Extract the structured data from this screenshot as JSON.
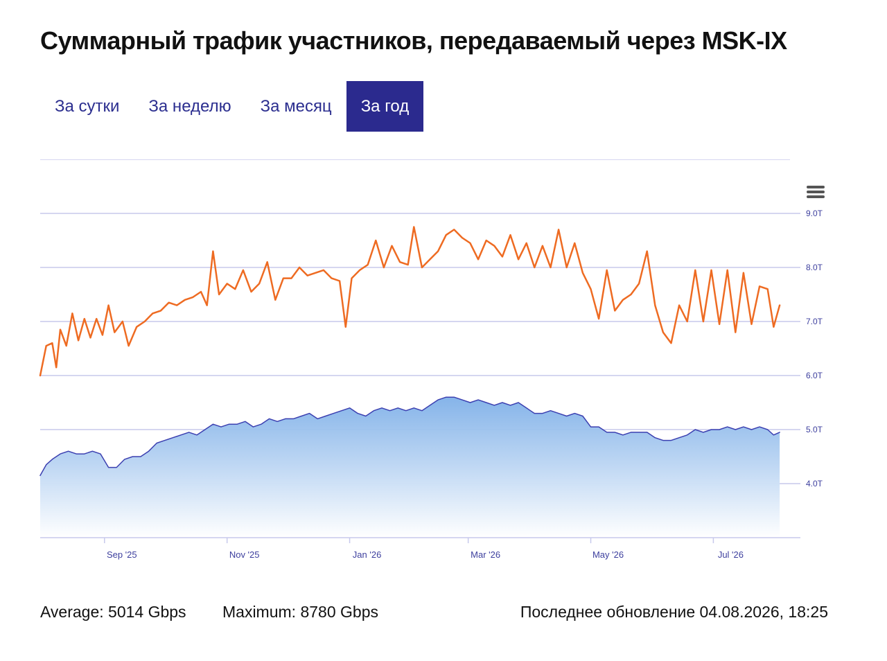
{
  "header": {
    "title": "Суммарный трафик участников, передаваемый через MSK-IX"
  },
  "tabs": [
    {
      "label": "За сутки",
      "active": false
    },
    {
      "label": "За неделю",
      "active": false
    },
    {
      "label": "За месяц",
      "active": false
    },
    {
      "label": "За год",
      "active": true
    }
  ],
  "menu": {
    "icon": "hamburger-menu-icon"
  },
  "colors": {
    "tab_active_bg": "#2b2a8e",
    "tab_text": "#2b2e8f",
    "max_series": "#ee6b22",
    "avg_series": "#3b3fb0",
    "area_fill_top": "#7fb0e8",
    "area_fill_bottom": "#ffffff",
    "grid": "#c7c9ec",
    "tick_text": "#3d3f9e"
  },
  "chart_data": {
    "type": "line",
    "x_start": "2025-07-31",
    "x_end": "2026-08-04",
    "x_tick_labels": [
      "Sep '25",
      "Nov '25",
      "Jan '26",
      "Mar '26",
      "May '26",
      "Jul '26"
    ],
    "x_tick_dates": [
      "2025-09-01",
      "2025-11-01",
      "2026-01-01",
      "2026-03-01",
      "2026-05-01",
      "2026-07-01"
    ],
    "y_tick_labels": [
      "4.0T",
      "5.0T",
      "6.0T",
      "7.0T",
      "8.0T",
      "9.0T"
    ],
    "y_tick_values": [
      4,
      5,
      6,
      7,
      8,
      9
    ],
    "ylim": [
      3,
      10
    ],
    "y_axis_side": "right",
    "grid": true,
    "series": [
      {
        "key": "max",
        "color": "#ee6b22",
        "fill": false,
        "points": [
          [
            "2025-07-31",
            6.0
          ],
          [
            "2025-08-03",
            6.55
          ],
          [
            "2025-08-06",
            6.6
          ],
          [
            "2025-08-08",
            6.15
          ],
          [
            "2025-08-10",
            6.85
          ],
          [
            "2025-08-13",
            6.55
          ],
          [
            "2025-08-16",
            7.15
          ],
          [
            "2025-08-19",
            6.65
          ],
          [
            "2025-08-22",
            7.05
          ],
          [
            "2025-08-25",
            6.7
          ],
          [
            "2025-08-28",
            7.05
          ],
          [
            "2025-08-31",
            6.75
          ],
          [
            "2025-09-03",
            7.3
          ],
          [
            "2025-09-06",
            6.8
          ],
          [
            "2025-09-10",
            7.0
          ],
          [
            "2025-09-13",
            6.55
          ],
          [
            "2025-09-17",
            6.9
          ],
          [
            "2025-09-21",
            7.0
          ],
          [
            "2025-09-25",
            7.15
          ],
          [
            "2025-09-29",
            7.2
          ],
          [
            "2025-10-03",
            7.35
          ],
          [
            "2025-10-07",
            7.3
          ],
          [
            "2025-10-11",
            7.4
          ],
          [
            "2025-10-15",
            7.45
          ],
          [
            "2025-10-19",
            7.55
          ],
          [
            "2025-10-22",
            7.3
          ],
          [
            "2025-10-25",
            8.3
          ],
          [
            "2025-10-28",
            7.5
          ],
          [
            "2025-11-01",
            7.7
          ],
          [
            "2025-11-05",
            7.6
          ],
          [
            "2025-11-09",
            7.95
          ],
          [
            "2025-11-13",
            7.55
          ],
          [
            "2025-11-17",
            7.7
          ],
          [
            "2025-11-21",
            8.1
          ],
          [
            "2025-11-25",
            7.4
          ],
          [
            "2025-11-29",
            7.8
          ],
          [
            "2025-12-03",
            7.8
          ],
          [
            "2025-12-07",
            8.0
          ],
          [
            "2025-12-11",
            7.85
          ],
          [
            "2025-12-15",
            7.9
          ],
          [
            "2025-12-19",
            7.95
          ],
          [
            "2025-12-23",
            7.8
          ],
          [
            "2025-12-27",
            7.75
          ],
          [
            "2025-12-30",
            6.9
          ],
          [
            "2026-01-02",
            7.8
          ],
          [
            "2026-01-06",
            7.95
          ],
          [
            "2026-01-10",
            8.05
          ],
          [
            "2026-01-14",
            8.5
          ],
          [
            "2026-01-18",
            8.0
          ],
          [
            "2026-01-22",
            8.4
          ],
          [
            "2026-01-26",
            8.1
          ],
          [
            "2026-01-30",
            8.05
          ],
          [
            "2026-02-02",
            8.75
          ],
          [
            "2026-02-06",
            8.0
          ],
          [
            "2026-02-10",
            8.15
          ],
          [
            "2026-02-14",
            8.3
          ],
          [
            "2026-02-18",
            8.6
          ],
          [
            "2026-02-22",
            8.7
          ],
          [
            "2026-02-26",
            8.55
          ],
          [
            "2026-03-02",
            8.45
          ],
          [
            "2026-03-06",
            8.15
          ],
          [
            "2026-03-10",
            8.5
          ],
          [
            "2026-03-14",
            8.4
          ],
          [
            "2026-03-18",
            8.2
          ],
          [
            "2026-03-22",
            8.6
          ],
          [
            "2026-03-26",
            8.15
          ],
          [
            "2026-03-30",
            8.45
          ],
          [
            "2026-04-03",
            8.0
          ],
          [
            "2026-04-07",
            8.4
          ],
          [
            "2026-04-11",
            8.0
          ],
          [
            "2026-04-15",
            8.7
          ],
          [
            "2026-04-19",
            8.0
          ],
          [
            "2026-04-23",
            8.45
          ],
          [
            "2026-04-27",
            7.9
          ],
          [
            "2026-05-01",
            7.6
          ],
          [
            "2026-05-05",
            7.05
          ],
          [
            "2026-05-09",
            7.95
          ],
          [
            "2026-05-13",
            7.2
          ],
          [
            "2026-05-17",
            7.4
          ],
          [
            "2026-05-21",
            7.5
          ],
          [
            "2026-05-25",
            7.7
          ],
          [
            "2026-05-29",
            8.3
          ],
          [
            "2026-06-02",
            7.3
          ],
          [
            "2026-06-06",
            6.8
          ],
          [
            "2026-06-10",
            6.6
          ],
          [
            "2026-06-14",
            7.3
          ],
          [
            "2026-06-18",
            7.0
          ],
          [
            "2026-06-22",
            7.95
          ],
          [
            "2026-06-26",
            7.0
          ],
          [
            "2026-06-30",
            7.95
          ],
          [
            "2026-07-04",
            6.95
          ],
          [
            "2026-07-08",
            7.95
          ],
          [
            "2026-07-12",
            6.8
          ],
          [
            "2026-07-16",
            7.9
          ],
          [
            "2026-07-20",
            6.95
          ],
          [
            "2026-07-24",
            7.65
          ],
          [
            "2026-07-28",
            7.6
          ],
          [
            "2026-07-31",
            6.9
          ],
          [
            "2026-08-03",
            7.3
          ]
        ]
      },
      {
        "key": "average",
        "color": "#3b3fb0",
        "fill": true,
        "points": [
          [
            "2025-07-31",
            4.15
          ],
          [
            "2025-08-03",
            4.35
          ],
          [
            "2025-08-06",
            4.45
          ],
          [
            "2025-08-10",
            4.55
          ],
          [
            "2025-08-14",
            4.6
          ],
          [
            "2025-08-18",
            4.55
          ],
          [
            "2025-08-22",
            4.55
          ],
          [
            "2025-08-26",
            4.6
          ],
          [
            "2025-08-30",
            4.55
          ],
          [
            "2025-09-03",
            4.3
          ],
          [
            "2025-09-07",
            4.3
          ],
          [
            "2025-09-11",
            4.45
          ],
          [
            "2025-09-15",
            4.5
          ],
          [
            "2025-09-19",
            4.5
          ],
          [
            "2025-09-23",
            4.6
          ],
          [
            "2025-09-27",
            4.75
          ],
          [
            "2025-10-01",
            4.8
          ],
          [
            "2025-10-05",
            4.85
          ],
          [
            "2025-10-09",
            4.9
          ],
          [
            "2025-10-13",
            4.95
          ],
          [
            "2025-10-17",
            4.9
          ],
          [
            "2025-10-21",
            5.0
          ],
          [
            "2025-10-25",
            5.1
          ],
          [
            "2025-10-29",
            5.05
          ],
          [
            "2025-11-02",
            5.1
          ],
          [
            "2025-11-06",
            5.1
          ],
          [
            "2025-11-10",
            5.15
          ],
          [
            "2025-11-14",
            5.05
          ],
          [
            "2025-11-18",
            5.1
          ],
          [
            "2025-11-22",
            5.2
          ],
          [
            "2025-11-26",
            5.15
          ],
          [
            "2025-11-30",
            5.2
          ],
          [
            "2025-12-04",
            5.2
          ],
          [
            "2025-12-08",
            5.25
          ],
          [
            "2025-12-12",
            5.3
          ],
          [
            "2025-12-16",
            5.2
          ],
          [
            "2025-12-20",
            5.25
          ],
          [
            "2025-12-24",
            5.3
          ],
          [
            "2025-12-28",
            5.35
          ],
          [
            "2026-01-01",
            5.4
          ],
          [
            "2026-01-05",
            5.3
          ],
          [
            "2026-01-09",
            5.25
          ],
          [
            "2026-01-13",
            5.35
          ],
          [
            "2026-01-17",
            5.4
          ],
          [
            "2026-01-21",
            5.35
          ],
          [
            "2026-01-25",
            5.4
          ],
          [
            "2026-01-29",
            5.35
          ],
          [
            "2026-02-02",
            5.4
          ],
          [
            "2026-02-06",
            5.35
          ],
          [
            "2026-02-10",
            5.45
          ],
          [
            "2026-02-14",
            5.55
          ],
          [
            "2026-02-18",
            5.6
          ],
          [
            "2026-02-22",
            5.6
          ],
          [
            "2026-02-26",
            5.55
          ],
          [
            "2026-03-02",
            5.5
          ],
          [
            "2026-03-06",
            5.55
          ],
          [
            "2026-03-10",
            5.5
          ],
          [
            "2026-03-14",
            5.45
          ],
          [
            "2026-03-18",
            5.5
          ],
          [
            "2026-03-22",
            5.45
          ],
          [
            "2026-03-26",
            5.5
          ],
          [
            "2026-03-30",
            5.4
          ],
          [
            "2026-04-03",
            5.3
          ],
          [
            "2026-04-07",
            5.3
          ],
          [
            "2026-04-11",
            5.35
          ],
          [
            "2026-04-15",
            5.3
          ],
          [
            "2026-04-19",
            5.25
          ],
          [
            "2026-04-23",
            5.3
          ],
          [
            "2026-04-27",
            5.25
          ],
          [
            "2026-05-01",
            5.05
          ],
          [
            "2026-05-05",
            5.05
          ],
          [
            "2026-05-09",
            4.95
          ],
          [
            "2026-05-13",
            4.95
          ],
          [
            "2026-05-17",
            4.9
          ],
          [
            "2026-05-21",
            4.95
          ],
          [
            "2026-05-25",
            4.95
          ],
          [
            "2026-05-29",
            4.95
          ],
          [
            "2026-06-02",
            4.85
          ],
          [
            "2026-06-06",
            4.8
          ],
          [
            "2026-06-10",
            4.8
          ],
          [
            "2026-06-14",
            4.85
          ],
          [
            "2026-06-18",
            4.9
          ],
          [
            "2026-06-22",
            5.0
          ],
          [
            "2026-06-26",
            4.95
          ],
          [
            "2026-06-30",
            5.0
          ],
          [
            "2026-07-04",
            5.0
          ],
          [
            "2026-07-08",
            5.05
          ],
          [
            "2026-07-12",
            5.0
          ],
          [
            "2026-07-16",
            5.05
          ],
          [
            "2026-07-20",
            5.0
          ],
          [
            "2026-07-24",
            5.05
          ],
          [
            "2026-07-28",
            5.0
          ],
          [
            "2026-07-31",
            4.9
          ],
          [
            "2026-08-03",
            4.95
          ]
        ]
      }
    ]
  },
  "footer": {
    "average": "Average: 5014 Gbps",
    "maximum": "Maximum: 8780 Gbps",
    "updated": "Последнее обновление 04.08.2026, 18:25"
  }
}
